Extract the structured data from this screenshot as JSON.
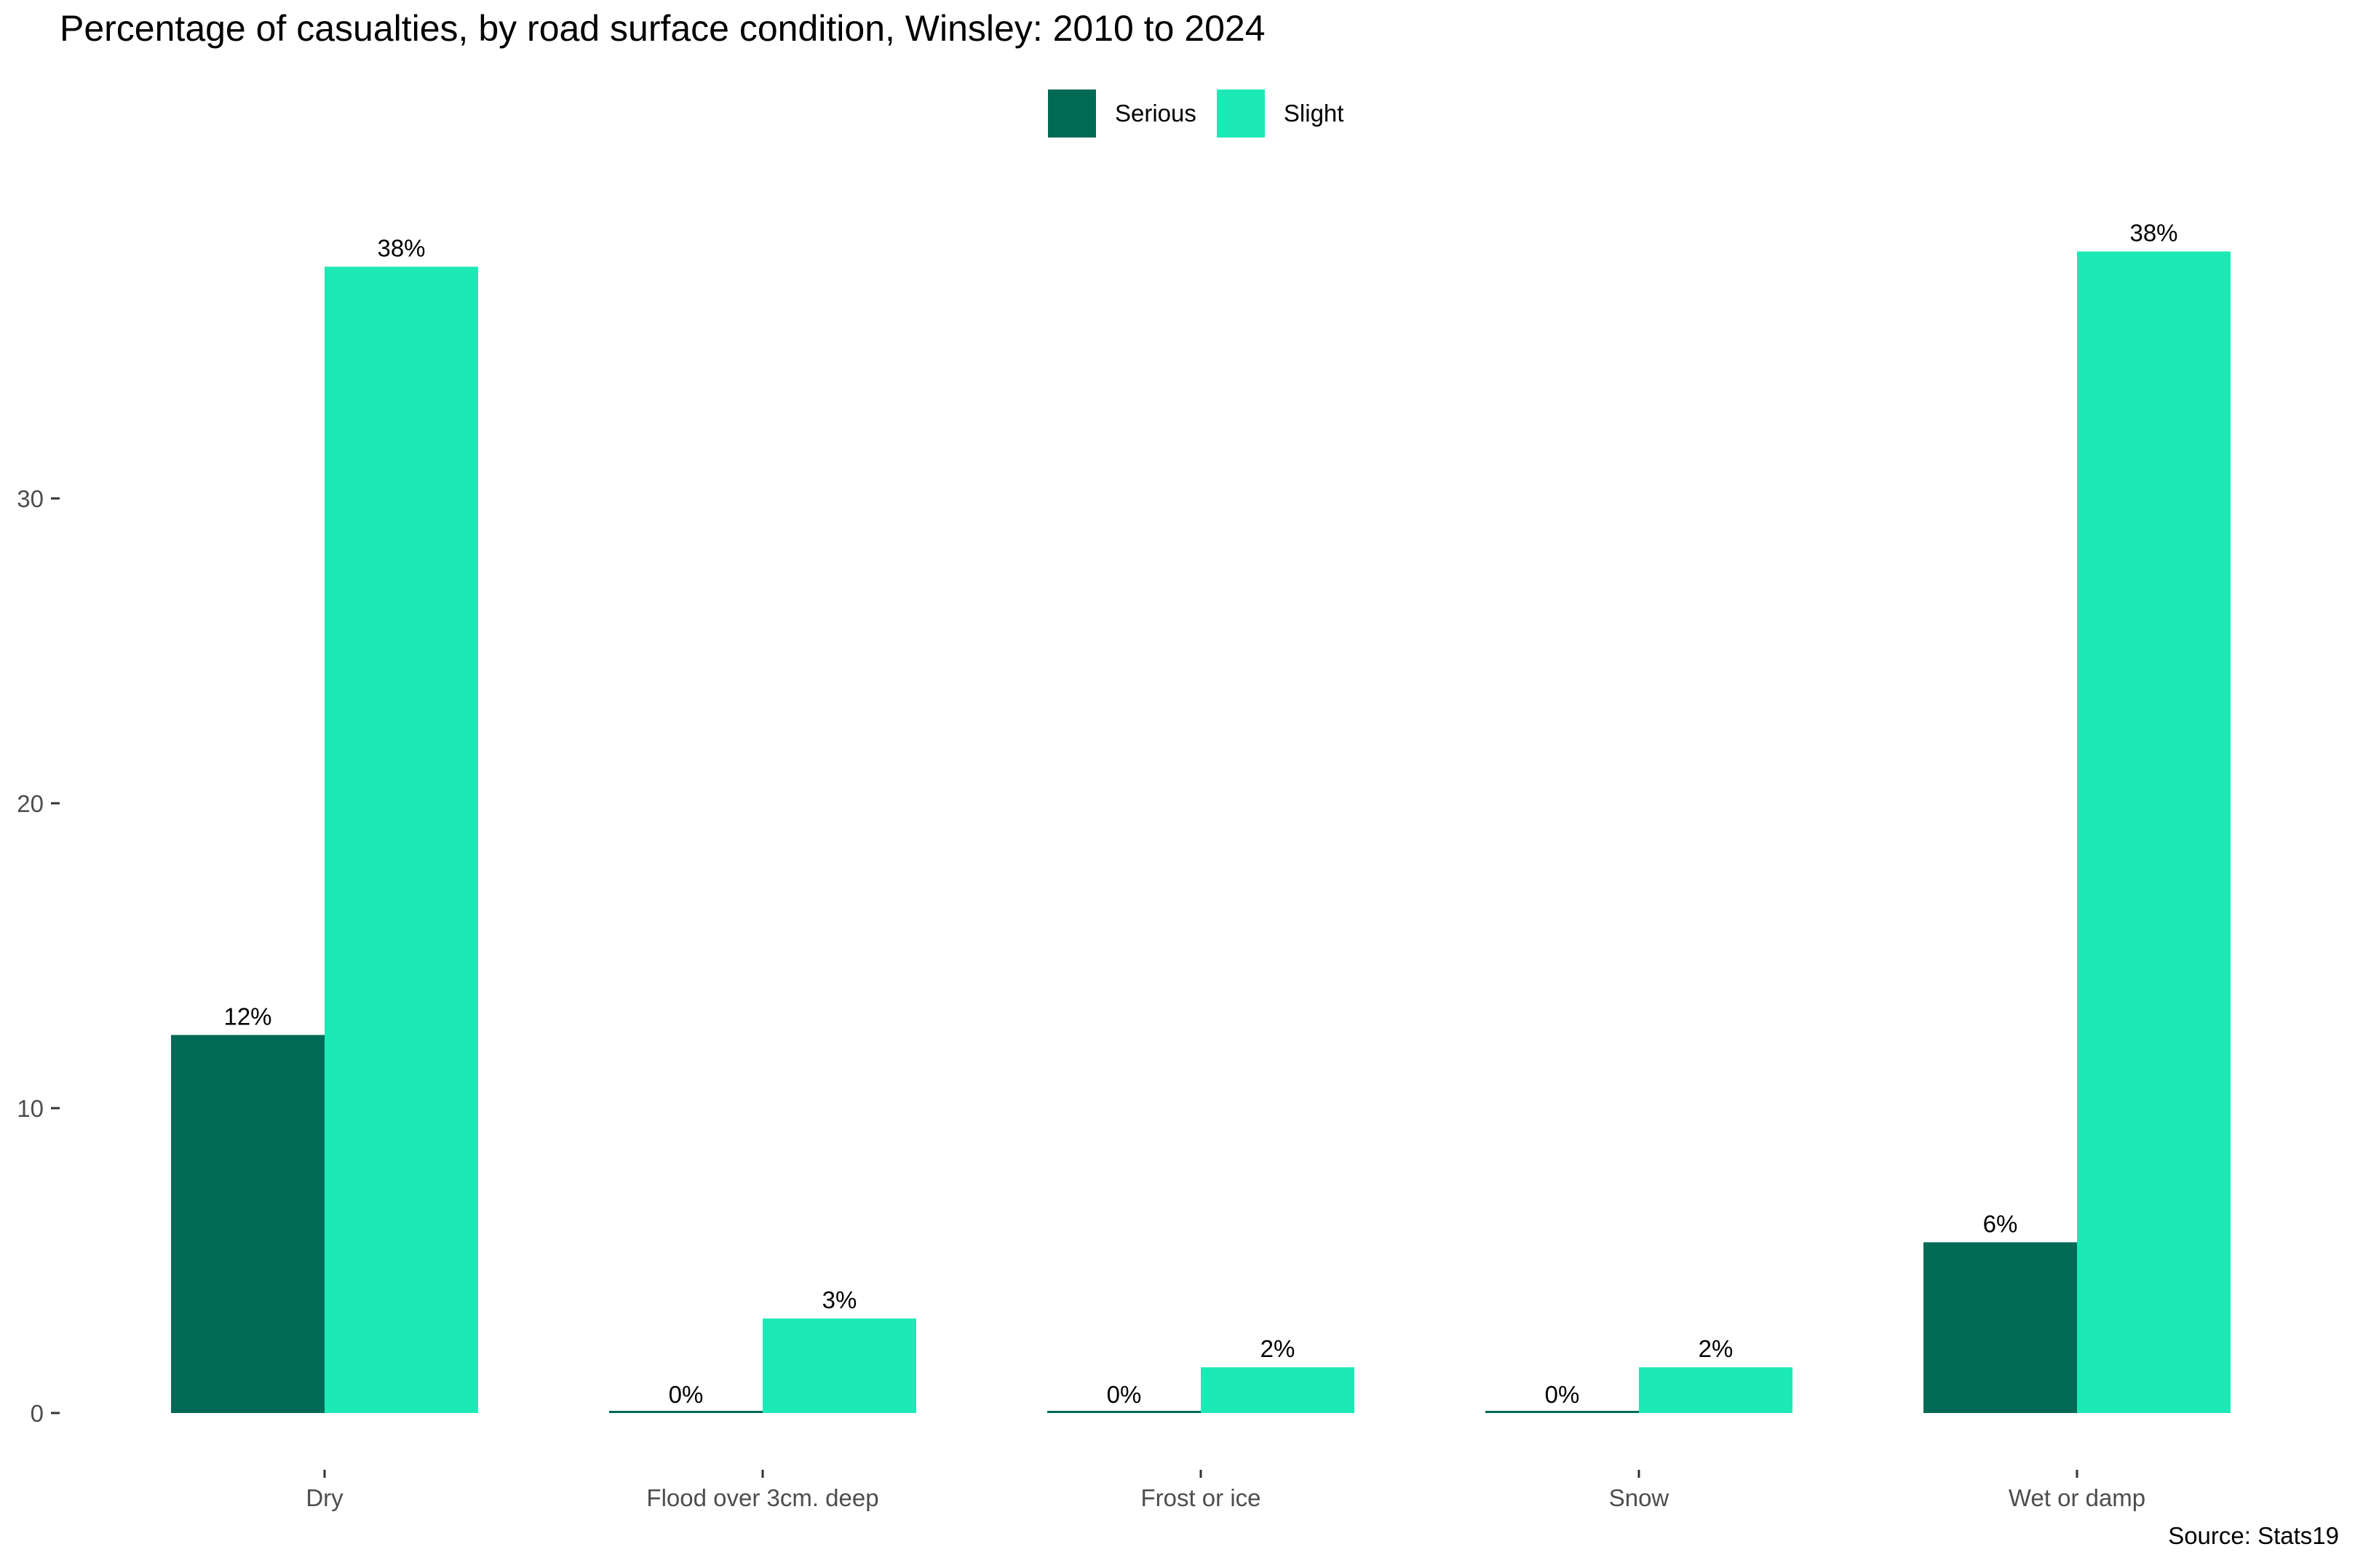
{
  "chart_data": {
    "type": "bar",
    "title": "Percentage of casualties, by road surface condition, Winsley: 2010 to 2024",
    "xlabel": "",
    "ylabel": "",
    "categories": [
      "Dry",
      "Flood over 3cm. deep",
      "Frost or ice",
      "Snow",
      "Wet or damp"
    ],
    "series": [
      {
        "name": "Serious",
        "color": "#006a55",
        "values": [
          12.4,
          0,
          0,
          0,
          5.6
        ],
        "labels": [
          "12%",
          "0%",
          "0%",
          "0%",
          "6%"
        ]
      },
      {
        "name": "Slight",
        "color": "#1de9b6",
        "values": [
          37.6,
          3.1,
          1.5,
          1.5,
          38.1
        ],
        "labels": [
          "38%",
          "3%",
          "2%",
          "2%",
          "38%"
        ]
      }
    ],
    "ylim": [
      0,
      38.1
    ],
    "yticks": [
      0,
      10,
      20,
      30
    ],
    "grid": false,
    "legend_position": "top",
    "caption": "Source: Stats19"
  }
}
